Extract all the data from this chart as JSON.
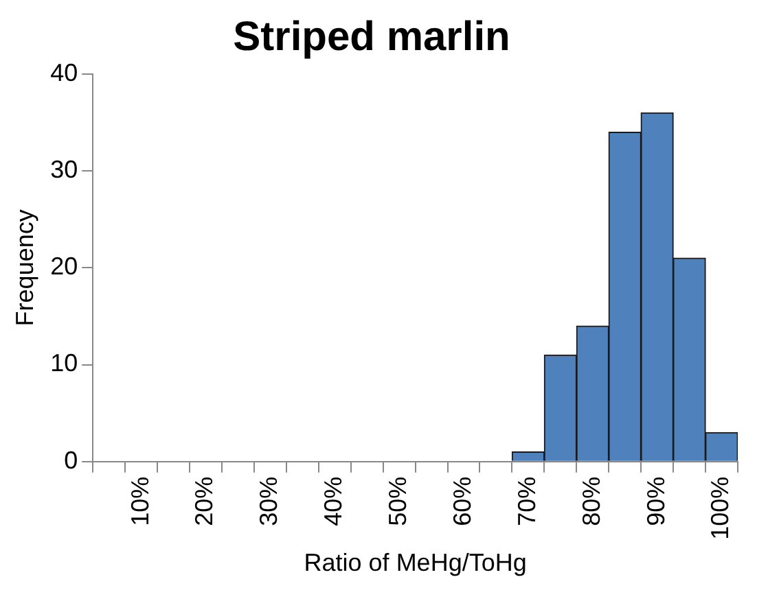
{
  "chart_data": {
    "type": "bar",
    "title": "Striped marlin",
    "xlabel": "Ratio of MeHg/ToHg",
    "ylabel": "Frequency",
    "categories": [
      null,
      "10%",
      null,
      "20%",
      null,
      "30%",
      null,
      "40%",
      null,
      "50%",
      null,
      "60%",
      null,
      "70%",
      null,
      "80%",
      null,
      "90%",
      null,
      "100%"
    ],
    "values": [
      0,
      0,
      0,
      0,
      0,
      0,
      0,
      0,
      0,
      0,
      0,
      0,
      0,
      1,
      11,
      14,
      34,
      36,
      21,
      3
    ],
    "color": "#4f81bd",
    "ylim": [
      0,
      40
    ],
    "yticks": [
      0,
      10,
      20,
      30,
      40
    ],
    "grid": false,
    "legend": false
  }
}
